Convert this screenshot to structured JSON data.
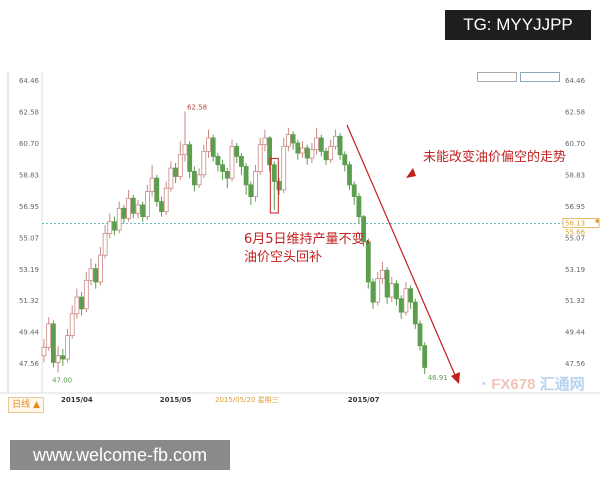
{
  "watermark_top": "TG: MYYJJPP",
  "watermark_bottom": "www.welcome-fb.com",
  "period_tab": "日线 ▲",
  "logo": {
    "prefix": "FX678",
    "suffix": "汇通网"
  },
  "annotations": {
    "june5_line1": "6月5日维持产量不变，",
    "june5_line2": "油价空头回补",
    "trend": "未能改变油价偏空的走势"
  },
  "colors": {
    "up": "#c98a84",
    "down": "#5a9e4e",
    "annotation": "#c21f1f",
    "crosshair": "#3a9fa8",
    "label": "#e0a030"
  },
  "chart_data": {
    "type": "candlestick",
    "title": "",
    "ylim": [
      46.5,
      64.46
    ],
    "y_ticks": [
      64.46,
      62.58,
      60.7,
      58.83,
      56.95,
      55.07,
      53.19,
      51.32,
      49.44,
      47.56
    ],
    "x_ticks": [
      {
        "label": "2015/04",
        "index": 7
      },
      {
        "label": "2015/05",
        "index": 28
      },
      {
        "label": "2015/07",
        "index": 68
      }
    ],
    "crosshair": {
      "date": "2015/05/20 星期三",
      "price": 55.9,
      "labels": [
        "56.13",
        "55.66"
      ]
    },
    "marked_high": {
      "label": "62.58",
      "index": 30,
      "value": 62.58
    },
    "marked_low": {
      "label": "47.00",
      "index": 3,
      "value": 47.0
    },
    "marked_last_low": {
      "label": "46.91",
      "index": 81,
      "value": 46.91
    },
    "highlight_index": 49,
    "ohlc": [
      [
        48.0,
        49.0,
        47.6,
        48.5
      ],
      [
        48.5,
        50.3,
        48.3,
        49.9
      ],
      [
        49.9,
        50.1,
        47.3,
        47.6
      ],
      [
        47.6,
        48.6,
        47.0,
        48.0
      ],
      [
        48.0,
        48.4,
        47.4,
        47.8
      ],
      [
        47.8,
        49.6,
        47.6,
        49.2
      ],
      [
        49.2,
        51.0,
        49.0,
        50.5
      ],
      [
        50.5,
        52.0,
        50.2,
        51.5
      ],
      [
        51.5,
        51.8,
        50.4,
        50.8
      ],
      [
        50.8,
        53.0,
        50.6,
        52.5
      ],
      [
        52.5,
        53.8,
        52.2,
        53.2
      ],
      [
        53.2,
        53.5,
        52.0,
        52.4
      ],
      [
        52.4,
        54.5,
        52.2,
        54.0
      ],
      [
        54.0,
        55.8,
        53.8,
        55.3
      ],
      [
        55.3,
        56.5,
        55.0,
        56.0
      ],
      [
        56.0,
        56.3,
        55.2,
        55.5
      ],
      [
        55.5,
        57.2,
        55.3,
        56.8
      ],
      [
        56.8,
        57.0,
        55.9,
        56.2
      ],
      [
        56.2,
        57.9,
        56.0,
        57.4
      ],
      [
        57.4,
        57.6,
        56.2,
        56.5
      ],
      [
        56.5,
        57.3,
        56.2,
        57.0
      ],
      [
        57.0,
        57.2,
        56.0,
        56.3
      ],
      [
        56.3,
        58.2,
        56.1,
        57.8
      ],
      [
        57.8,
        59.4,
        57.5,
        58.6
      ],
      [
        58.6,
        58.8,
        56.9,
        57.2
      ],
      [
        57.2,
        57.5,
        56.3,
        56.6
      ],
      [
        56.6,
        58.4,
        56.4,
        58.0
      ],
      [
        58.0,
        59.6,
        57.8,
        59.2
      ],
      [
        59.2,
        59.5,
        58.3,
        58.7
      ],
      [
        58.7,
        60.8,
        58.5,
        60.0
      ],
      [
        60.0,
        62.58,
        59.6,
        60.6
      ],
      [
        60.6,
        60.8,
        58.6,
        59.0
      ],
      [
        59.0,
        59.3,
        57.8,
        58.2
      ],
      [
        58.2,
        59.2,
        58.0,
        58.8
      ],
      [
        58.8,
        60.6,
        58.6,
        60.2
      ],
      [
        60.2,
        61.5,
        59.8,
        61.0
      ],
      [
        61.0,
        61.2,
        59.6,
        59.9
      ],
      [
        59.9,
        60.1,
        59.0,
        59.4
      ],
      [
        59.4,
        59.7,
        58.5,
        59.0
      ],
      [
        59.0,
        59.2,
        58.0,
        58.6
      ],
      [
        58.6,
        60.9,
        58.4,
        60.5
      ],
      [
        60.5,
        60.7,
        59.5,
        59.9
      ],
      [
        59.9,
        60.1,
        58.8,
        59.3
      ],
      [
        59.3,
        59.5,
        57.6,
        58.2
      ],
      [
        58.2,
        58.4,
        57.0,
        57.5
      ],
      [
        57.5,
        59.4,
        57.2,
        59.0
      ],
      [
        59.0,
        61.0,
        58.8,
        60.6
      ],
      [
        60.6,
        61.5,
        60.2,
        61.0
      ],
      [
        61.0,
        61.1,
        59.0,
        59.4
      ],
      [
        59.4,
        59.6,
        56.7,
        58.4
      ],
      [
        58.4,
        58.6,
        57.6,
        57.9
      ],
      [
        57.9,
        61.0,
        57.7,
        60.5
      ],
      [
        60.5,
        61.6,
        60.2,
        61.2
      ],
      [
        61.2,
        61.4,
        60.3,
        60.7
      ],
      [
        60.7,
        60.9,
        59.7,
        60.1
      ],
      [
        60.1,
        60.8,
        59.8,
        60.4
      ],
      [
        60.4,
        60.6,
        59.4,
        59.8
      ],
      [
        59.8,
        60.7,
        59.5,
        60.3
      ],
      [
        60.3,
        61.6,
        60.0,
        61.0
      ],
      [
        61.0,
        61.2,
        59.9,
        60.2
      ],
      [
        60.2,
        60.4,
        59.4,
        59.7
      ],
      [
        59.7,
        60.9,
        59.5,
        60.5
      ],
      [
        60.5,
        61.5,
        60.3,
        61.1
      ],
      [
        61.1,
        61.3,
        59.7,
        60.0
      ],
      [
        60.0,
        60.2,
        59.0,
        59.4
      ],
      [
        59.4,
        59.6,
        57.9,
        58.2
      ],
      [
        58.2,
        58.4,
        57.0,
        57.5
      ],
      [
        57.5,
        57.7,
        55.9,
        56.3
      ],
      [
        56.3,
        56.4,
        54.5,
        54.8
      ],
      [
        54.8,
        55.0,
        52.0,
        52.4
      ],
      [
        52.4,
        52.6,
        50.8,
        51.2
      ],
      [
        51.2,
        53.0,
        51.0,
        52.6
      ],
      [
        52.6,
        53.6,
        52.3,
        53.1
      ],
      [
        53.1,
        53.3,
        51.1,
        51.5
      ],
      [
        51.5,
        52.7,
        51.2,
        52.3
      ],
      [
        52.3,
        52.5,
        51.0,
        51.4
      ],
      [
        51.4,
        51.6,
        50.2,
        50.6
      ],
      [
        50.6,
        52.4,
        50.4,
        52.0
      ],
      [
        52.0,
        52.2,
        50.8,
        51.2
      ],
      [
        51.2,
        51.4,
        49.6,
        49.9
      ],
      [
        49.9,
        50.1,
        48.3,
        48.6
      ],
      [
        48.6,
        48.8,
        46.91,
        47.3
      ]
    ]
  }
}
